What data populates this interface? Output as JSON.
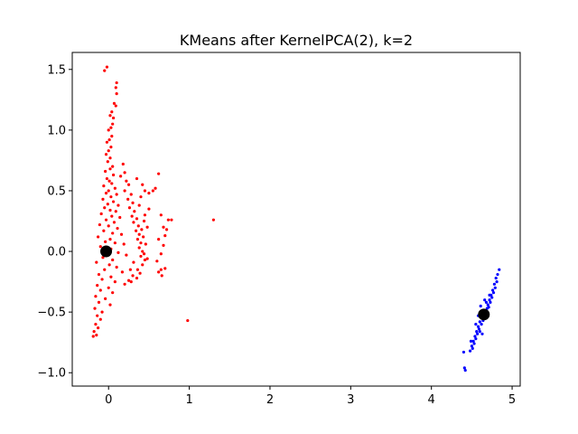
{
  "chart_data": {
    "type": "scatter",
    "title": "KMeans after KernelPCA(2), k=2",
    "xlabel": "",
    "ylabel": "",
    "xlim": [
      -0.45,
      5.1
    ],
    "ylim": [
      -1.11,
      1.64
    ],
    "x_ticks": [
      {
        "value": 0,
        "label": "0"
      },
      {
        "value": 1,
        "label": "1"
      },
      {
        "value": 2,
        "label": "2"
      },
      {
        "value": 3,
        "label": "3"
      },
      {
        "value": 4,
        "label": "4"
      },
      {
        "value": 5,
        "label": "5"
      }
    ],
    "y_ticks": [
      {
        "value": -1.0,
        "label": "−1.0"
      },
      {
        "value": -0.5,
        "label": "−0.5"
      },
      {
        "value": 0.0,
        "label": "0.0"
      },
      {
        "value": 0.5,
        "label": "0.5"
      },
      {
        "value": 1.0,
        "label": "1.0"
      },
      {
        "value": 1.5,
        "label": "1.5"
      }
    ],
    "grid": false,
    "legend": "none",
    "series": [
      {
        "color": "#ff0000",
        "points": [
          [
            -0.02,
            1.52
          ],
          [
            -0.05,
            1.49
          ],
          [
            0.1,
            1.39
          ],
          [
            0.09,
            1.35
          ],
          [
            0.1,
            1.3
          ],
          [
            0.07,
            1.22
          ],
          [
            0.09,
            1.2
          ],
          [
            0.04,
            1.15
          ],
          [
            0.02,
            1.12
          ],
          [
            0.06,
            1.1
          ],
          [
            0.05,
            1.05
          ],
          [
            0.03,
            1.02
          ],
          [
            0.0,
            1.0
          ],
          [
            0.04,
            0.95
          ],
          [
            0.01,
            0.92
          ],
          [
            -0.02,
            0.9
          ],
          [
            0.03,
            0.86
          ],
          [
            0.0,
            0.83
          ],
          [
            -0.03,
            0.8
          ],
          [
            0.02,
            0.77
          ],
          [
            -0.01,
            0.74
          ],
          [
            0.05,
            0.7
          ],
          [
            0.02,
            0.68
          ],
          [
            -0.04,
            0.66
          ],
          [
            0.06,
            0.63
          ],
          [
            -0.02,
            0.6
          ],
          [
            0.01,
            0.58
          ],
          [
            0.04,
            0.56
          ],
          [
            -0.06,
            0.54
          ],
          [
            0.08,
            0.52
          ],
          [
            0.0,
            0.5
          ],
          [
            -0.03,
            0.48
          ],
          [
            0.1,
            0.47
          ],
          [
            0.03,
            0.45
          ],
          [
            -0.07,
            0.43
          ],
          [
            0.06,
            0.41
          ],
          [
            -0.01,
            0.39
          ],
          [
            0.12,
            0.38
          ],
          [
            -0.05,
            0.36
          ],
          [
            0.02,
            0.34
          ],
          [
            0.09,
            0.33
          ],
          [
            -0.09,
            0.31
          ],
          [
            0.04,
            0.29
          ],
          [
            0.14,
            0.28
          ],
          [
            -0.03,
            0.26
          ],
          [
            0.07,
            0.24
          ],
          [
            -0.11,
            0.22
          ],
          [
            0.0,
            0.21
          ],
          [
            0.11,
            0.19
          ],
          [
            -0.06,
            0.17
          ],
          [
            0.05,
            0.15
          ],
          [
            0.16,
            0.14
          ],
          [
            -0.13,
            0.12
          ],
          [
            0.02,
            0.1
          ],
          [
            -0.04,
            0.08
          ],
          [
            0.08,
            0.07
          ],
          [
            0.19,
            0.06
          ],
          [
            -0.1,
            0.04
          ],
          [
            0.03,
            0.02
          ],
          [
            -0.02,
            0.0
          ],
          [
            0.12,
            -0.01
          ],
          [
            0.22,
            -0.03
          ],
          [
            -0.07,
            -0.05
          ],
          [
            0.05,
            -0.07
          ],
          [
            -0.15,
            -0.09
          ],
          [
            0.01,
            -0.11
          ],
          [
            0.1,
            -0.13
          ],
          [
            -0.05,
            -0.15
          ],
          [
            0.17,
            -0.17
          ],
          [
            -0.12,
            -0.19
          ],
          [
            0.03,
            -0.21
          ],
          [
            -0.08,
            -0.23
          ],
          [
            0.08,
            -0.25
          ],
          [
            -0.14,
            -0.28
          ],
          [
            0.0,
            -0.3
          ],
          [
            -0.1,
            -0.32
          ],
          [
            0.05,
            -0.34
          ],
          [
            -0.16,
            -0.37
          ],
          [
            -0.04,
            -0.39
          ],
          [
            -0.12,
            -0.42
          ],
          [
            0.02,
            -0.44
          ],
          [
            -0.17,
            -0.47
          ],
          [
            -0.08,
            -0.5
          ],
          [
            -0.14,
            -0.53
          ],
          [
            -0.1,
            -0.56
          ],
          [
            -0.16,
            -0.6
          ],
          [
            -0.13,
            -0.63
          ],
          [
            -0.18,
            -0.66
          ],
          [
            -0.15,
            -0.69
          ],
          [
            -0.19,
            -0.7
          ],
          [
            0.18,
            0.72
          ],
          [
            0.2,
            0.65
          ],
          [
            0.22,
            0.58
          ],
          [
            0.15,
            0.62
          ],
          [
            0.25,
            0.55
          ],
          [
            0.2,
            0.5
          ],
          [
            0.28,
            0.47
          ],
          [
            0.24,
            0.43
          ],
          [
            0.3,
            0.4
          ],
          [
            0.26,
            0.36
          ],
          [
            0.32,
            0.33
          ],
          [
            0.29,
            0.29
          ],
          [
            0.35,
            0.27
          ],
          [
            0.31,
            0.24
          ],
          [
            0.37,
            0.21
          ],
          [
            0.34,
            0.17
          ],
          [
            0.38,
            0.14
          ],
          [
            0.36,
            0.1
          ],
          [
            0.4,
            0.07
          ],
          [
            0.38,
            0.03
          ],
          [
            0.42,
            0.0
          ],
          [
            0.4,
            -0.04
          ],
          [
            0.45,
            -0.07
          ],
          [
            0.42,
            -0.11
          ],
          [
            0.36,
            -0.15
          ],
          [
            0.3,
            -0.2
          ],
          [
            0.25,
            -0.24
          ],
          [
            0.2,
            -0.27
          ],
          [
            0.31,
            -0.09
          ],
          [
            0.27,
            -0.15
          ],
          [
            0.35,
            0.6
          ],
          [
            0.42,
            0.55
          ],
          [
            0.45,
            0.5
          ],
          [
            0.5,
            0.48
          ],
          [
            0.55,
            0.5
          ],
          [
            0.58,
            0.52
          ],
          [
            0.4,
            0.45
          ],
          [
            0.38,
            0.38
          ],
          [
            0.45,
            0.3
          ],
          [
            0.5,
            0.35
          ],
          [
            0.44,
            0.25
          ],
          [
            0.48,
            0.2
          ],
          [
            0.43,
            0.12
          ],
          [
            0.46,
            0.06
          ],
          [
            0.44,
            -0.02
          ],
          [
            0.48,
            -0.06
          ],
          [
            0.41,
            0.18
          ],
          [
            0.39,
            -0.18
          ],
          [
            0.35,
            -0.22
          ],
          [
            0.28,
            -0.25
          ],
          [
            0.62,
            0.64
          ],
          [
            0.65,
            0.3
          ],
          [
            0.62,
            0.1
          ],
          [
            0.68,
            0.05
          ],
          [
            0.7,
            0.13
          ],
          [
            0.72,
            0.18
          ],
          [
            0.68,
            0.2
          ],
          [
            0.74,
            0.26
          ],
          [
            0.65,
            -0.02
          ],
          [
            0.6,
            -0.08
          ],
          [
            0.7,
            -0.14
          ],
          [
            0.65,
            -0.15
          ],
          [
            0.62,
            -0.17
          ],
          [
            0.66,
            -0.2
          ],
          [
            0.78,
            0.26
          ],
          [
            0.98,
            -0.57
          ],
          [
            1.3,
            0.26
          ]
        ]
      },
      {
        "color": "#0000ff",
        "points": [
          [
            4.84,
            -0.15
          ],
          [
            4.82,
            -0.19
          ],
          [
            4.8,
            -0.22
          ],
          [
            4.81,
            -0.25
          ],
          [
            4.78,
            -0.27
          ],
          [
            4.79,
            -0.3
          ],
          [
            4.76,
            -0.32
          ],
          [
            4.77,
            -0.34
          ],
          [
            4.74,
            -0.36
          ],
          [
            4.75,
            -0.38
          ],
          [
            4.72,
            -0.4
          ],
          [
            4.73,
            -0.42
          ],
          [
            4.7,
            -0.44
          ],
          [
            4.71,
            -0.46
          ],
          [
            4.69,
            -0.47
          ],
          [
            4.67,
            -0.5
          ],
          [
            4.68,
            -0.52
          ],
          [
            4.65,
            -0.54
          ],
          [
            4.63,
            -0.55
          ],
          [
            4.64,
            -0.57
          ],
          [
            4.6,
            -0.58
          ],
          [
            4.62,
            -0.6
          ],
          [
            4.58,
            -0.62
          ],
          [
            4.59,
            -0.64
          ],
          [
            4.56,
            -0.66
          ],
          [
            4.57,
            -0.68
          ],
          [
            4.54,
            -0.7
          ],
          [
            4.55,
            -0.72
          ],
          [
            4.52,
            -0.74
          ],
          [
            4.53,
            -0.76
          ],
          [
            4.5,
            -0.78
          ],
          [
            4.51,
            -0.8
          ],
          [
            4.48,
            -0.82
          ],
          [
            4.4,
            -0.83
          ],
          [
            4.41,
            -0.96
          ],
          [
            4.42,
            -0.98
          ],
          [
            4.6,
            -0.66
          ],
          [
            4.66,
            -0.4
          ],
          [
            4.61,
            -0.45
          ],
          [
            4.58,
            -0.53
          ],
          [
            4.55,
            -0.6
          ],
          [
            4.72,
            -0.36
          ],
          [
            4.68,
            -0.42
          ],
          [
            4.63,
            -0.68
          ],
          [
            4.49,
            -0.74
          ]
        ]
      }
    ],
    "centroids": {
      "color": "#000000",
      "points": [
        [
          -0.03,
          0.0
        ],
        [
          4.65,
          -0.52
        ]
      ]
    }
  }
}
